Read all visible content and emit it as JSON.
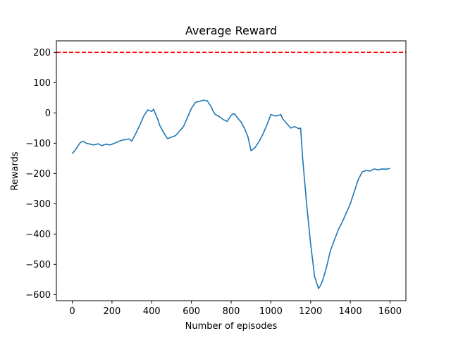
{
  "chart_data": {
    "type": "line",
    "title": "Average Reward",
    "xlabel": "Number of episodes",
    "ylabel": "Rewards",
    "xlim": [
      -80,
      1680
    ],
    "ylim": [
      -620,
      238
    ],
    "xticks": [
      0,
      200,
      400,
      600,
      800,
      1000,
      1200,
      1400,
      1600
    ],
    "yticks": [
      -600,
      -500,
      -400,
      -300,
      -200,
      -100,
      0,
      100,
      200
    ],
    "grid": false,
    "legend": "none",
    "reference_line": {
      "y": 200,
      "style": "dashed",
      "color": "#ff0000"
    },
    "series": [
      {
        "color": "#1f77b4",
        "x": [
          0,
          20,
          40,
          55,
          70,
          90,
          110,
          130,
          150,
          170,
          190,
          210,
          230,
          250,
          270,
          285,
          300,
          320,
          340,
          360,
          380,
          400,
          410,
          420,
          430,
          440,
          460,
          480,
          500,
          520,
          540,
          560,
          580,
          600,
          620,
          640,
          660,
          680,
          690,
          700,
          710,
          720,
          740,
          760,
          780,
          800,
          810,
          820,
          830,
          850,
          870,
          885,
          900,
          920,
          940,
          960,
          980,
          1000,
          1020,
          1040,
          1050,
          1060,
          1080,
          1100,
          1120,
          1140,
          1150,
          1160,
          1180,
          1200,
          1220,
          1240,
          1250,
          1260,
          1280,
          1300,
          1320,
          1340,
          1360,
          1380,
          1400,
          1420,
          1440,
          1460,
          1480,
          1500,
          1520,
          1540,
          1560,
          1580,
          1600
        ],
        "y": [
          -135,
          -118,
          -98,
          -93,
          -100,
          -103,
          -106,
          -102,
          -108,
          -103,
          -106,
          -101,
          -95,
          -90,
          -88,
          -86,
          -93,
          -68,
          -40,
          -10,
          10,
          5,
          12,
          -5,
          -20,
          -40,
          -65,
          -85,
          -80,
          -75,
          -60,
          -45,
          -15,
          15,
          35,
          38,
          42,
          40,
          30,
          20,
          5,
          -5,
          -12,
          -22,
          -28,
          -8,
          -3,
          -5,
          -15,
          -30,
          -55,
          -80,
          -125,
          -115,
          -95,
          -70,
          -40,
          -5,
          -10,
          -8,
          -5,
          -20,
          -35,
          -50,
          -45,
          -52,
          -50,
          -150,
          -300,
          -430,
          -540,
          -580,
          -570,
          -555,
          -510,
          -455,
          -420,
          -385,
          -360,
          -330,
          -300,
          -260,
          -220,
          -195,
          -190,
          -192,
          -185,
          -188,
          -185,
          -186,
          -183
        ]
      }
    ]
  }
}
